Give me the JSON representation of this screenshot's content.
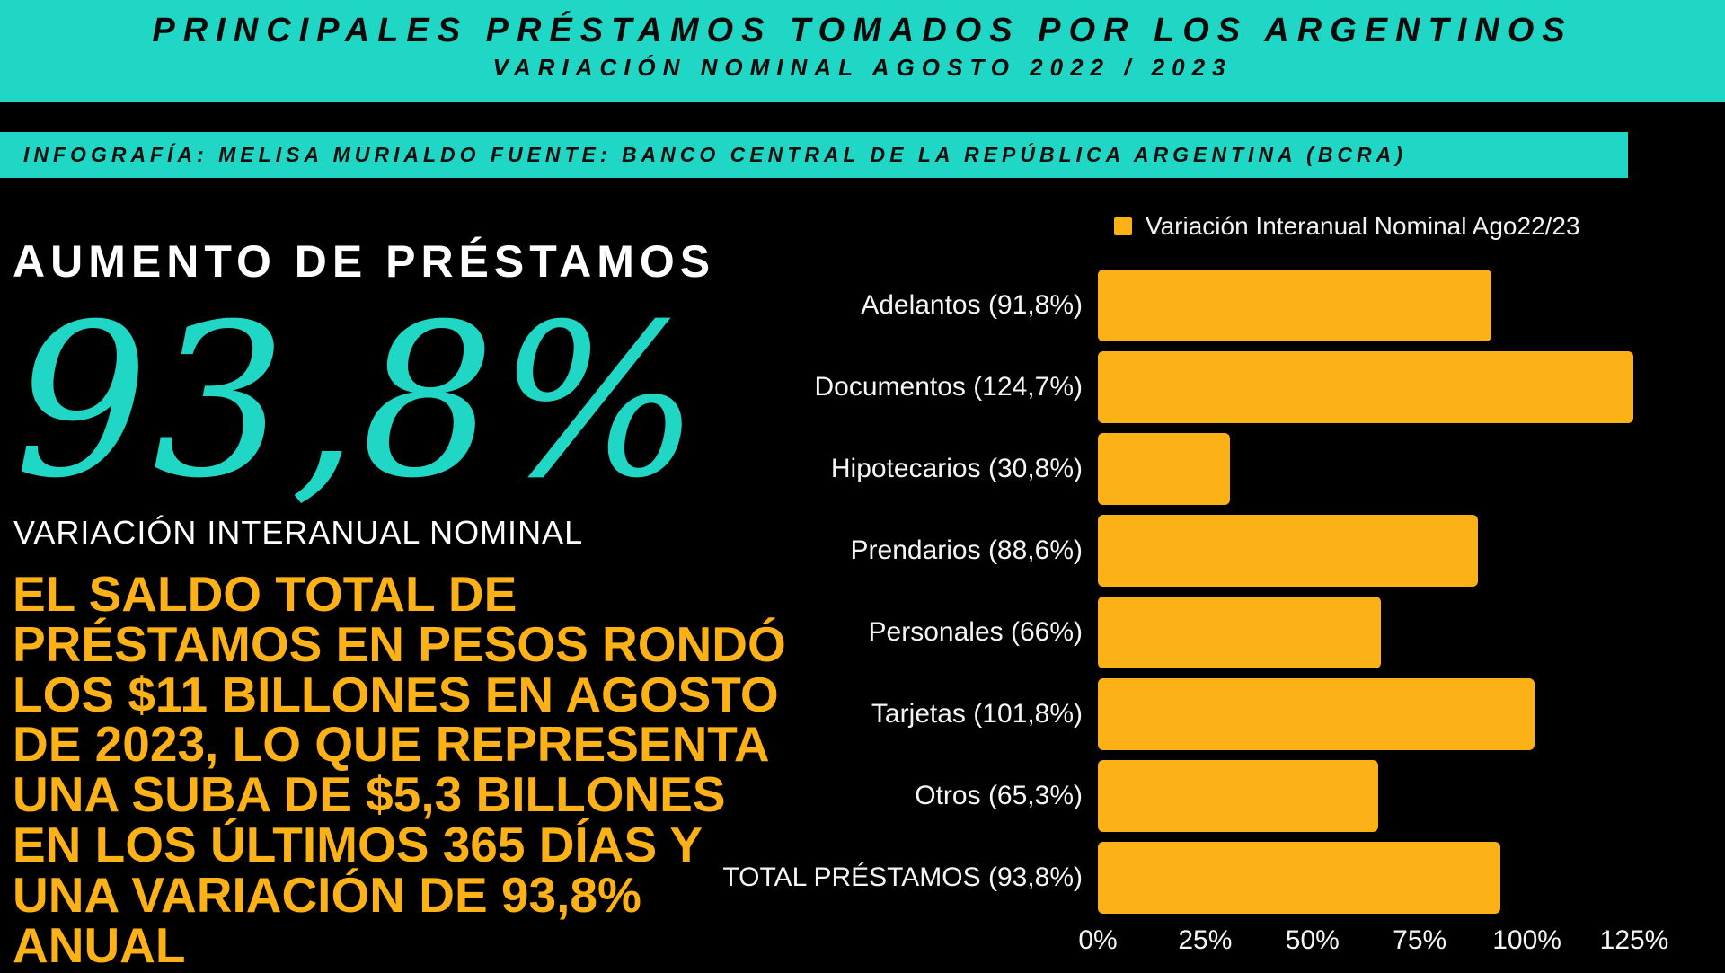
{
  "colors": {
    "teal": "#1fd7c4",
    "orange": "#fcb116",
    "background": "#000000",
    "text_light": "#f5f5f5",
    "text_dark": "#0a0a0a"
  },
  "header": {
    "title": "PRINCIPALES PRÉSTAMOS TOMADOS POR LOS ARGENTINOS",
    "subtitle": "VARIACIÓN NOMINAL AGOSTO 2022 / 2023"
  },
  "credit": {
    "text": "INFOGRAFÍA: MELISA MURIALDO FUENTE: BANCO CENTRAL DE LA REPÚBLICA ARGENTINA (BCRA)"
  },
  "highlight": {
    "heading": "AUMENTO DE PRÉSTAMOS",
    "big_number": "93,8%",
    "caption": "VARIACIÓN INTERANUAL NOMINAL",
    "body": "EL SALDO TOTAL DE\nPRÉSTAMOS EN PESOS RONDÓ\nLOS $11 BILLONES EN AGOSTO\nDE 2023, LO QUE REPRESENTA\nUNA SUBA DE $5,3 BILLONES\nEN LOS ÚLTIMOS 365 DÍAS Y\nUNA VARIACIÓN DE 93,8%\nANUAL"
  },
  "chart_data": {
    "type": "bar",
    "orientation": "horizontal",
    "title": "",
    "legend": {
      "label": "Variación Interanual Nominal Ago22/23",
      "position": "top-right",
      "swatch_color": "#fcb116"
    },
    "categories": [
      "Adelantos",
      "Documentos",
      "Hipotecarios",
      "Prendarios",
      "Personales",
      "Tarjetas",
      "Otros",
      "TOTAL PRÉSTAMOS"
    ],
    "values": [
      91.8,
      124.7,
      30.8,
      88.6,
      66,
      101.8,
      65.3,
      93.8
    ],
    "bar_labels": [
      "Adelantos (91,8%)",
      "Documentos (124,7%)",
      "Hipotecarios (30,8%)",
      "Prendarios (88,6%)",
      "Personales (66%)",
      "Tarjetas (101,8%)",
      "Otros (65,3%)",
      "TOTAL PRÉSTAMOS (93,8%)"
    ],
    "xlabel": "",
    "ylabel": "",
    "xlim": [
      0,
      125
    ],
    "x_ticks": [
      "0%",
      "25%",
      "50%",
      "75%",
      "100%",
      "125%"
    ],
    "grid": false,
    "bar_color": "#fcb116"
  }
}
